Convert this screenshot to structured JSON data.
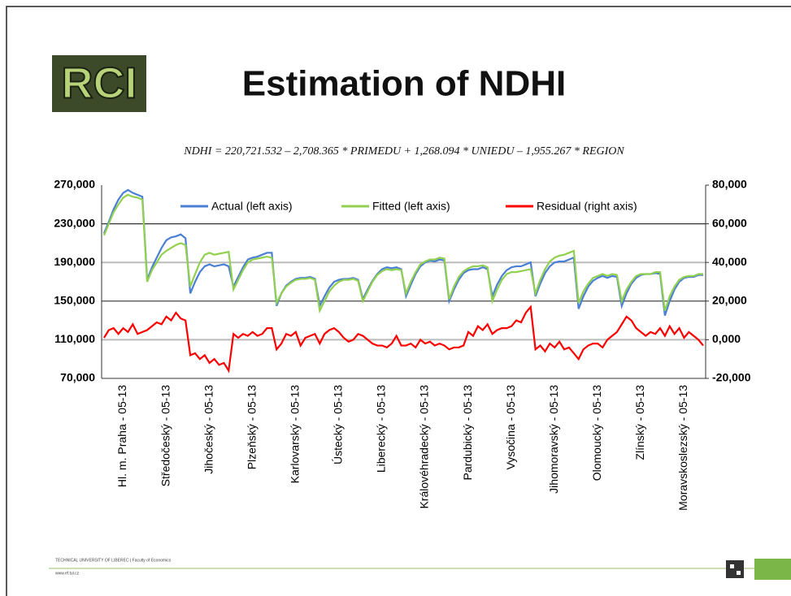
{
  "header": {
    "logo": "RCI",
    "title": "Estimation of NDHI",
    "equation": "NDHI = 220,721.532 – 2,708.365 * PRIMEDU + 1,268.094 * UNIEDU – 1,955.267 * REGION"
  },
  "footer": {
    "university": "TECHNICAL UNIVERSITY OF LIBEREC | Faculty of Economics",
    "url": "www.ef.tul.cz"
  },
  "chart_data": {
    "type": "line",
    "grid": true,
    "legend": "top",
    "categories": [
      null,
      null,
      null,
      null,
      "Hl. m. Praha - 05-13",
      null,
      null,
      null,
      null,
      null,
      null,
      null,
      null,
      "Středočeský - 05-13",
      null,
      null,
      null,
      null,
      null,
      null,
      null,
      null,
      "Jihočeský - 05-13",
      null,
      null,
      null,
      null,
      null,
      null,
      null,
      null,
      "Plzeňský - 05-13",
      null,
      null,
      null,
      null,
      null,
      null,
      null,
      null,
      "Karlovarský - 05-13",
      null,
      null,
      null,
      null,
      null,
      null,
      null,
      null,
      "Ústecký - 05-13",
      null,
      null,
      null,
      null,
      null,
      null,
      null,
      null,
      "Liberecký - 05-13",
      null,
      null,
      null,
      null,
      null,
      null,
      null,
      null,
      "Královéhradecký - 05-13",
      null,
      null,
      null,
      null,
      null,
      null,
      null,
      null,
      "Pardubický - 05-13",
      null,
      null,
      null,
      null,
      null,
      null,
      null,
      null,
      "Vysočina - 05-13",
      null,
      null,
      null,
      null,
      null,
      null,
      null,
      null,
      "Jihomoravský - 05-13",
      null,
      null,
      null,
      null,
      null,
      null,
      null,
      null,
      "Olomoucký - 05-13",
      null,
      null,
      null,
      null,
      null,
      null,
      null,
      null,
      "Zlínský - 05-13",
      null,
      null,
      null,
      null,
      null,
      null,
      null,
      null,
      "Moravskoslezský - 05-13",
      null,
      null,
      null,
      null
    ],
    "ylim": [
      70000,
      270000
    ],
    "yticks": [
      {
        "value": 70000,
        "label": "70,000"
      },
      {
        "value": 110000,
        "label": "110,000"
      },
      {
        "value": 150000,
        "label": "150,000"
      },
      {
        "value": 190000,
        "label": "190,000"
      },
      {
        "value": 230000,
        "label": "230,000"
      },
      {
        "value": 270000,
        "label": "270,000"
      }
    ],
    "y2lim": [
      -20000,
      80000
    ],
    "y2ticks": [
      {
        "value": -20000,
        "label": "-20,000"
      },
      {
        "value": 0,
        "label": "0,000"
      },
      {
        "value": 20000,
        "label": "20,000"
      },
      {
        "value": 40000,
        "label": "40,000"
      },
      {
        "value": 60000,
        "label": "60,000"
      },
      {
        "value": 80000,
        "label": "80,000"
      }
    ],
    "series": [
      {
        "name": "Actual (left axis)",
        "color": "#4a7fd4",
        "values": [
          220000,
          232000,
          245000,
          255000,
          262000,
          265000,
          262000,
          260000,
          258000,
          172000,
          185000,
          195000,
          205000,
          213000,
          216000,
          217000,
          219000,
          215000,
          158000,
          170000,
          180000,
          186000,
          188000,
          186000,
          187000,
          188000,
          186000,
          165000,
          175000,
          185000,
          193000,
          195000,
          196000,
          198000,
          200000,
          200000,
          145000,
          158000,
          166000,
          170000,
          173000,
          174000,
          174000,
          175000,
          173000,
          145000,
          155000,
          164000,
          170000,
          172000,
          173000,
          173000,
          174000,
          172000,
          152000,
          162000,
          171000,
          178000,
          183000,
          185000,
          184000,
          185000,
          183000,
          155000,
          167000,
          178000,
          186000,
          190000,
          192000,
          191000,
          193000,
          192000,
          150000,
          162000,
          172000,
          179000,
          182000,
          183000,
          183000,
          185000,
          183000,
          155000,
          167000,
          176000,
          182000,
          185000,
          186000,
          186000,
          188000,
          190000,
          155000,
          168000,
          179000,
          186000,
          190000,
          191000,
          191000,
          193000,
          195000,
          142000,
          155000,
          165000,
          171000,
          174000,
          176000,
          174000,
          176000,
          175000,
          145000,
          158000,
          168000,
          174000,
          177000,
          178000,
          178000,
          179000,
          178000,
          135000,
          150000,
          162000,
          170000,
          174000,
          175000,
          175000,
          177000,
          177000
        ]
      },
      {
        "name": "Fitted (left axis)",
        "color": "#92d050",
        "values": [
          218000,
          230000,
          242000,
          250000,
          257000,
          260000,
          258000,
          257000,
          255000,
          170000,
          182000,
          190000,
          198000,
          202000,
          205000,
          208000,
          210000,
          208000,
          165000,
          178000,
          190000,
          198000,
          200000,
          198000,
          199000,
          200000,
          201000,
          162000,
          172000,
          182000,
          190000,
          193000,
          194000,
          195000,
          196000,
          195000,
          148000,
          158000,
          165000,
          169000,
          172000,
          173000,
          173000,
          174000,
          172000,
          140000,
          150000,
          160000,
          166000,
          170000,
          172000,
          172000,
          173000,
          171000,
          150000,
          160000,
          170000,
          177000,
          181000,
          183000,
          182000,
          183000,
          182000,
          158000,
          170000,
          180000,
          188000,
          191000,
          193000,
          193000,
          195000,
          194000,
          152000,
          165000,
          175000,
          181000,
          184000,
          186000,
          186000,
          187000,
          185000,
          150000,
          162000,
          172000,
          178000,
          180000,
          180000,
          181000,
          182000,
          183000,
          158000,
          172000,
          183000,
          191000,
          195000,
          197000,
          198000,
          200000,
          202000,
          148000,
          160000,
          168000,
          174000,
          176000,
          178000,
          176000,
          178000,
          177000,
          150000,
          162000,
          170000,
          176000,
          178000,
          178000,
          178000,
          180000,
          180000,
          140000,
          155000,
          165000,
          172000,
          175000,
          176000,
          176000,
          178000,
          178000
        ]
      },
      {
        "name": "Residual (right axis)",
        "color": "#ff0000",
        "axis": "y2",
        "values": [
          1000,
          5000,
          6000,
          3000,
          6000,
          4000,
          8000,
          3000,
          4000,
          5000,
          7000,
          9000,
          8000,
          12000,
          10000,
          14000,
          11000,
          10000,
          -8000,
          -7000,
          -10000,
          -8000,
          -12000,
          -10000,
          -13000,
          -12000,
          -16000,
          3000,
          1000,
          3000,
          2000,
          4000,
          2000,
          3000,
          6000,
          6000,
          -5000,
          -2000,
          3000,
          2000,
          4000,
          -3000,
          1000,
          2000,
          3000,
          -2000,
          3000,
          5000,
          6000,
          4000,
          1000,
          -1000,
          0,
          3000,
          2000,
          0,
          -2000,
          -3000,
          -3000,
          -4000,
          -2000,
          2000,
          -3000,
          -3000,
          -2000,
          -4000,
          0,
          -2000,
          -1000,
          -3000,
          -2000,
          -3000,
          -5000,
          -4000,
          -4000,
          -3000,
          4000,
          2000,
          7000,
          5000,
          8000,
          3000,
          5000,
          6000,
          6000,
          7000,
          10000,
          9000,
          14000,
          17000,
          -5000,
          -3000,
          -6000,
          -2000,
          -4000,
          -1000,
          -5000,
          -4000,
          -7000,
          -10000,
          -5000,
          -3000,
          -2000,
          -2000,
          -4000,
          0,
          2000,
          4000,
          8000,
          12000,
          10000,
          6000,
          4000,
          2000,
          4000,
          3000,
          6000,
          2000,
          7000,
          3000,
          6000,
          1000,
          4000,
          2000,
          0,
          -3000
        ]
      }
    ]
  }
}
